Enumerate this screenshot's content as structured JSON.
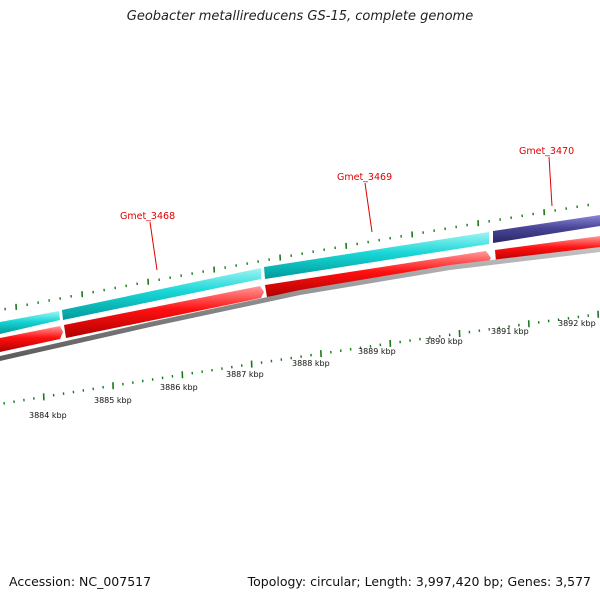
{
  "title": "Geobacter metallireducens GS-15, complete genome",
  "footer": {
    "accession": "Accession: NC_007517",
    "summary": "Topology: circular; Length: 3,997,420 bp; Genes: 3,577"
  },
  "colors": {
    "cds_top": "#00cccc",
    "cds_top_alt": "#3d3a8c",
    "gene_forward": "#ff0000",
    "backbone": "#888888",
    "ticks": "#1a7a1a",
    "gene_label": "#e00000"
  },
  "genes": [
    {
      "name": "Gmet_3468"
    },
    {
      "name": "Gmet_3469"
    },
    {
      "name": "Gmet_3470"
    }
  ],
  "kbp_ticks": [
    {
      "label": "3884 kbp"
    },
    {
      "label": "3885 kbp"
    },
    {
      "label": "3886 kbp"
    },
    {
      "label": "3887 kbp"
    },
    {
      "label": "3888 kbp"
    },
    {
      "label": "3889 kbp"
    },
    {
      "label": "3890 kbp"
    },
    {
      "label": "3891 kbp"
    },
    {
      "label": "3892 kbp"
    }
  ]
}
